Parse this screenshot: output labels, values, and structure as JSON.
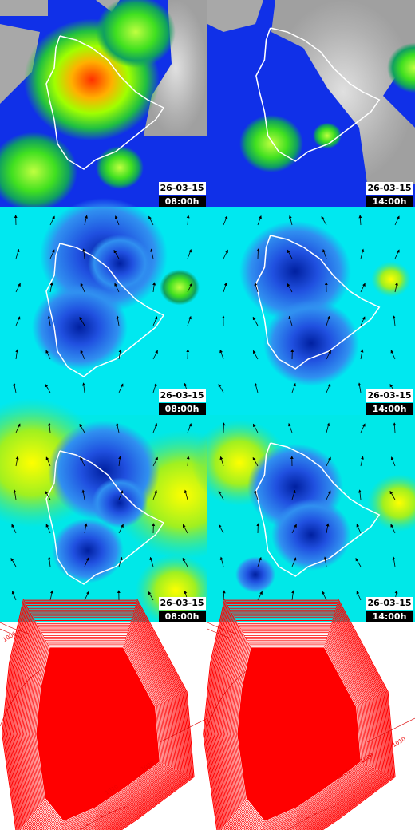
{
  "panels": [
    {
      "date": "26-03-15",
      "time": "08:00h"
    },
    {
      "date": "26-03-15",
      "time": "14:00h"
    },
    {
      "date": "26-03-15",
      "time": "08:00h"
    },
    {
      "date": "26-03-15",
      "time": "14:00h"
    },
    {
      "date": "26-03-15",
      "time": "08:00h"
    },
    {
      "date": "26-03-15",
      "time": "14:00h"
    }
  ],
  "pressure_panels": [
    {
      "contour_labels": [
        "1006",
        "1010",
        "1008"
      ]
    },
    {
      "contour_labels": [
        "1010",
        "1006",
        "1008"
      ]
    }
  ]
}
